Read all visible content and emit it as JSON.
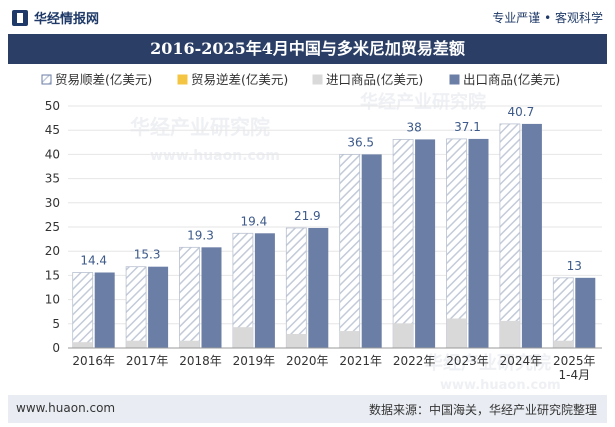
{
  "header": {
    "brand": "华经情报网",
    "tagline": "专业严谨 • 客观科学"
  },
  "footer": {
    "website": "www.huaon.com",
    "source": "数据来源：中国海关，华经产业研究院整理"
  },
  "watermark": {
    "text1": "华经产业研究院",
    "text2": "www.huaon.com"
  },
  "colors": {
    "surplus": "#d9dee8",
    "deficit": "#f4c542",
    "import": "#d9d9d9",
    "export": "#6b7ea6",
    "title_bg": "#2b3f66"
  },
  "chart_data": {
    "type": "bar",
    "title": "2016-2025年4月中国与多米尼加贸易差额",
    "categories": [
      "2016年",
      "2017年",
      "2018年",
      "2019年",
      "2020年",
      "2021年",
      "2022年",
      "2023年",
      "2024年",
      "2025年\n1-4月"
    ],
    "ylim": [
      0,
      50
    ],
    "yticks": [
      0,
      5,
      10,
      15,
      20,
      25,
      30,
      35,
      40,
      45,
      50
    ],
    "legend_position": "top",
    "series": [
      {
        "name": "贸易顺差(亿美元)",
        "values": [
          14.4,
          15.3,
          19.3,
          19.4,
          21.9,
          36.5,
          38,
          37.1,
          40.7,
          13
        ]
      },
      {
        "name": "贸易逆差(亿美元)",
        "values": [
          0,
          0,
          0,
          0,
          0,
          0,
          0,
          0,
          0,
          0
        ]
      },
      {
        "name": "进口商品(亿美元)",
        "values": [
          1.2,
          1.5,
          1.5,
          4.3,
          2.9,
          3.5,
          5.1,
          6.1,
          5.6,
          1.5
        ]
      },
      {
        "name": "出口商品(亿美元)",
        "values": [
          15.6,
          16.8,
          20.8,
          23.7,
          24.8,
          40.0,
          43.1,
          43.2,
          46.3,
          14.5
        ]
      }
    ],
    "data_labels": [
      "14.4",
      "15.3",
      "19.3",
      "19.4",
      "21.9",
      "36.5",
      "38",
      "37.1",
      "40.7",
      "13"
    ]
  }
}
